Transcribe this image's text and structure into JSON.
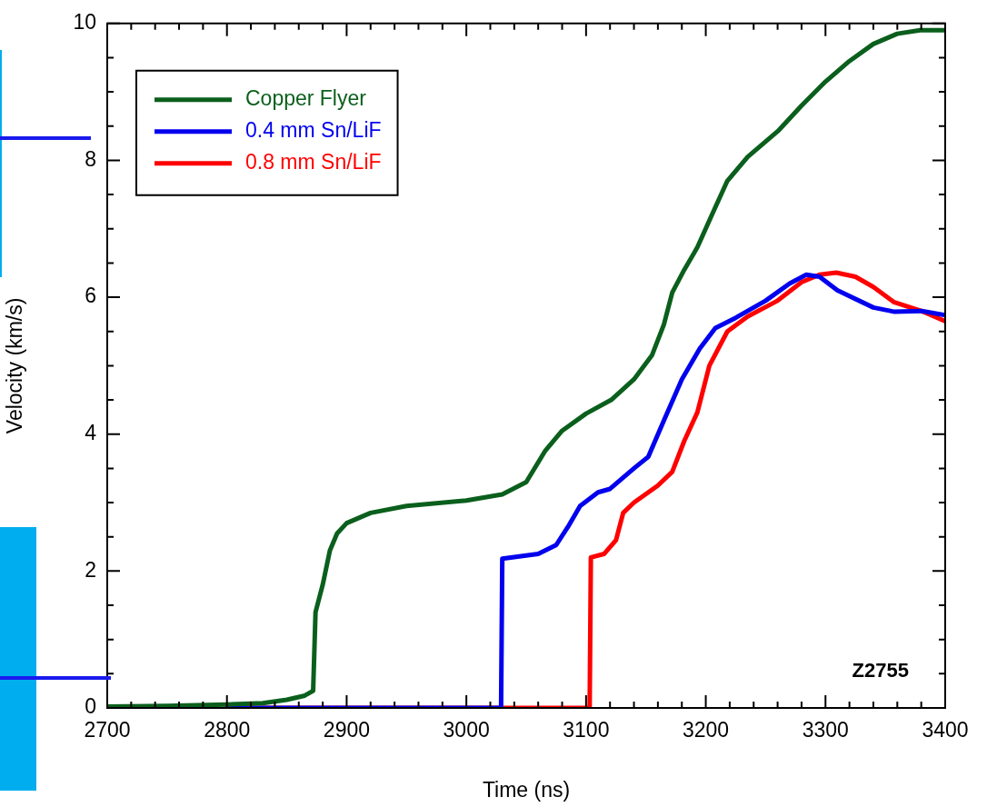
{
  "chart_data": {
    "type": "line",
    "xlabel": "Time (ns)",
    "ylabel": "Velocity (km/s)",
    "annotations": [
      "Z2755"
    ],
    "legend": "top left",
    "grid": false,
    "marker": "none",
    "line_style": "solid",
    "xlim": [
      2700,
      3400
    ],
    "ylim": [
      0,
      10
    ],
    "xticks": [
      2700,
      {
        "value": 2720,
        "label": null
      },
      {
        "value": 2740,
        "label": null
      },
      {
        "value": 2760,
        "label": null
      },
      {
        "value": 2780,
        "label": null
      },
      2800,
      {
        "value": 2820,
        "label": null
      },
      {
        "value": 2840,
        "label": null
      },
      {
        "value": 2860,
        "label": null
      },
      {
        "value": 2880,
        "label": null
      },
      2900,
      {
        "value": 2920,
        "label": null
      },
      {
        "value": 2940,
        "label": null
      },
      {
        "value": 2960,
        "label": null
      },
      {
        "value": 2980,
        "label": null
      },
      3000,
      {
        "value": 3020,
        "label": null
      },
      {
        "value": 3040,
        "label": null
      },
      {
        "value": 3060,
        "label": null
      },
      {
        "value": 3080,
        "label": null
      },
      3100,
      {
        "value": 3120,
        "label": null
      },
      {
        "value": 3140,
        "label": null
      },
      {
        "value": 3160,
        "label": null
      },
      {
        "value": 3180,
        "label": null
      },
      3200,
      {
        "value": 3220,
        "label": null
      },
      {
        "value": 3240,
        "label": null
      },
      {
        "value": 3260,
        "label": null
      },
      {
        "value": 3280,
        "label": null
      },
      3300,
      {
        "value": 3320,
        "label": null
      },
      {
        "value": 3340,
        "label": null
      },
      {
        "value": 3360,
        "label": null
      },
      {
        "value": 3380,
        "label": null
      },
      3400
    ],
    "yticks": [
      0,
      {
        "value": 0.5,
        "label": null
      },
      {
        "value": 1,
        "label": null
      },
      {
        "value": 1.5,
        "label": null
      },
      2,
      {
        "value": 2.5,
        "label": null
      },
      {
        "value": 3,
        "label": null
      },
      {
        "value": 3.5,
        "label": null
      },
      4,
      {
        "value": 4.5,
        "label": null
      },
      {
        "value": 5,
        "label": null
      },
      {
        "value": 5.5,
        "label": null
      },
      6,
      {
        "value": 6.5,
        "label": null
      },
      {
        "value": 7,
        "label": null
      },
      {
        "value": 7.5,
        "label": null
      },
      8,
      {
        "value": 8.5,
        "label": null
      },
      {
        "value": 9,
        "label": null
      },
      {
        "value": 9.5,
        "label": null
      },
      10
    ],
    "series": [
      {
        "name": "Copper Flyer",
        "color": "#0a5f1c",
        "x": [
          2700,
          2750,
          2800,
          2830,
          2850,
          2865,
          2872,
          2874,
          2880,
          2886,
          2892,
          2900,
          2920,
          2950,
          3000,
          3030,
          3050,
          3066,
          3080,
          3100,
          3121,
          3140,
          3155,
          3165,
          3172,
          3182,
          3193,
          3205,
          3218,
          3235,
          3261,
          3280,
          3300,
          3320,
          3340,
          3360,
          3379,
          3400
        ],
        "values": [
          0.02,
          0.03,
          0.05,
          0.07,
          0.12,
          0.18,
          0.25,
          1.4,
          1.8,
          2.3,
          2.55,
          2.7,
          2.85,
          2.95,
          3.03,
          3.12,
          3.3,
          3.76,
          4.05,
          4.3,
          4.5,
          4.8,
          5.15,
          5.6,
          6.07,
          6.4,
          6.73,
          7.2,
          7.7,
          8.05,
          8.44,
          8.8,
          9.15,
          9.45,
          9.7,
          9.85,
          9.9,
          9.9
        ]
      },
      {
        "name": "0.4 mm Sn/LiF",
        "color": "#0000ee",
        "x": [
          2800,
          3029,
          3030,
          3060,
          3075,
          3085,
          3095,
          3110,
          3120,
          3140,
          3152,
          3165,
          3180,
          3195,
          3208,
          3225,
          3250,
          3270,
          3284,
          3295,
          3310,
          3340,
          3357,
          3380,
          3400
        ],
        "values": [
          0,
          0,
          2.18,
          2.25,
          2.38,
          2.65,
          2.95,
          3.15,
          3.2,
          3.5,
          3.67,
          4.2,
          4.8,
          5.25,
          5.55,
          5.7,
          5.95,
          6.2,
          6.33,
          6.3,
          6.1,
          5.85,
          5.79,
          5.8,
          5.74
        ]
      },
      {
        "name": "0.8 mm Sn/LiF",
        "color": "#ff0000",
        "x": [
          2800,
          3103,
          3104,
          3115,
          3125,
          3131,
          3140,
          3160,
          3172,
          3182,
          3193,
          3203,
          3218,
          3235,
          3260,
          3280,
          3295,
          3309,
          3325,
          3340,
          3357,
          3380,
          3400
        ],
        "values": [
          0,
          0,
          2.2,
          2.25,
          2.45,
          2.85,
          3.0,
          3.25,
          3.45,
          3.9,
          4.32,
          5.0,
          5.5,
          5.72,
          5.95,
          6.22,
          6.33,
          6.36,
          6.3,
          6.15,
          5.93,
          5.8,
          5.65
        ]
      }
    ]
  }
}
